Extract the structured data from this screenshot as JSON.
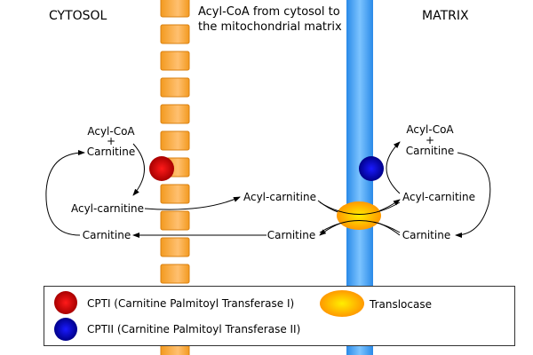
{
  "labels": {
    "cytosol": "CYTOSOL",
    "matrix": "MATRIX",
    "title_line1": "Acyl-CoA from cytosol to",
    "title_line2": "the mitochondrial matrix",
    "left_acylcoa": "Acyl-CoA",
    "left_plus": "+",
    "left_carnitine_top": "Carnitine",
    "left_acylcarnitine": "Acyl-carnitine",
    "left_carnitine_bottom": "Carnitine",
    "mid_acylcarnitine": "Acyl-carnitine",
    "mid_carnitine": "Carnitine",
    "right_acylcoa": "Acyl-CoA",
    "right_plus": "+",
    "right_carnitine_top": "Carnitine",
    "right_acylcarnitine": "Acyl-carnitine",
    "right_carnitine_bottom": "Carnitine"
  },
  "legend": {
    "cpt1": "CPTI (Carnitine Palmitoyl Transferase I)",
    "cpt2": "CPTII (Carnitine Palmitoyl Transferase II)",
    "translocase": "Translocase"
  },
  "colors": {
    "outer_membrane": "#f7a030",
    "inner_membrane": "#3399ee",
    "cpt1": "#cc0000",
    "cpt2": "#0000bb",
    "translocase": "#ffaa00"
  }
}
